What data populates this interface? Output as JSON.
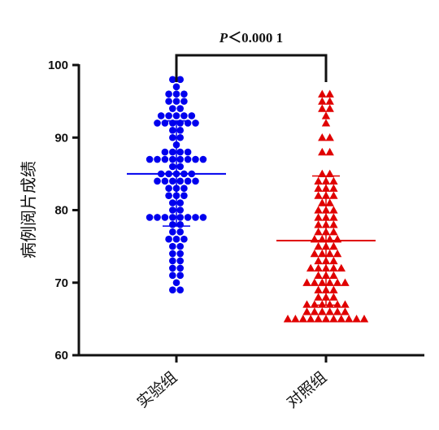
{
  "chart_data": {
    "type": "scatter",
    "ylabel": "病例阅片成绩",
    "ylim": [
      60,
      100
    ],
    "yticks": [
      60,
      70,
      80,
      90,
      100
    ],
    "categories": [
      "实验组",
      "对照组"
    ],
    "grid": false,
    "annotation": {
      "text": "P＜0.000 1",
      "between": [
        "实验组",
        "对照组"
      ]
    },
    "colors": {
      "实验组": "#0000ee",
      "对照组": "#e00000"
    },
    "markers": {
      "实验组": "circle",
      "对照组": "triangle"
    },
    "series": [
      {
        "name": "实验组",
        "values": [
          98,
          98,
          97,
          96,
          96,
          96,
          95,
          95,
          95,
          94,
          94,
          93,
          93,
          93,
          93,
          93,
          92,
          92,
          92,
          92,
          92,
          92,
          91,
          91,
          90,
          90,
          89,
          88,
          88,
          88,
          88,
          87,
          87,
          87,
          87,
          87,
          87,
          87,
          87,
          86,
          86,
          85,
          85,
          85,
          85,
          85,
          84,
          84,
          84,
          84,
          84,
          84,
          83,
          83,
          83,
          82,
          82,
          82,
          81,
          81,
          80,
          80,
          79,
          79,
          79,
          79,
          79,
          79,
          79,
          79,
          78,
          78,
          77,
          77,
          76,
          76,
          76,
          75,
          75,
          74,
          74,
          73,
          73,
          72,
          72,
          71,
          71,
          70,
          69,
          69
        ],
        "mean": 85.0,
        "sd_range": [
          77.8,
          92.3
        ]
      },
      {
        "name": "对照组",
        "values": [
          96,
          96,
          95,
          95,
          94,
          94,
          93,
          92,
          90,
          90,
          88,
          88,
          85,
          85,
          84,
          84,
          84,
          83,
          83,
          83,
          82,
          82,
          82,
          81,
          81,
          80,
          80,
          80,
          79,
          79,
          79,
          78,
          78,
          78,
          77,
          77,
          77,
          76,
          76,
          76,
          76,
          75,
          75,
          75,
          74,
          74,
          74,
          74,
          73,
          73,
          73,
          72,
          72,
          72,
          72,
          72,
          71,
          71,
          71,
          70,
          70,
          70,
          70,
          70,
          70,
          69,
          69,
          69,
          68,
          68,
          68,
          67,
          67,
          67,
          67,
          67,
          67,
          66,
          66,
          66,
          66,
          66,
          66,
          65,
          65,
          65,
          65,
          65,
          65,
          65,
          65,
          65,
          65,
          65
        ],
        "mean": 75.8,
        "sd_range": [
          66.9,
          84.7
        ]
      }
    ]
  }
}
